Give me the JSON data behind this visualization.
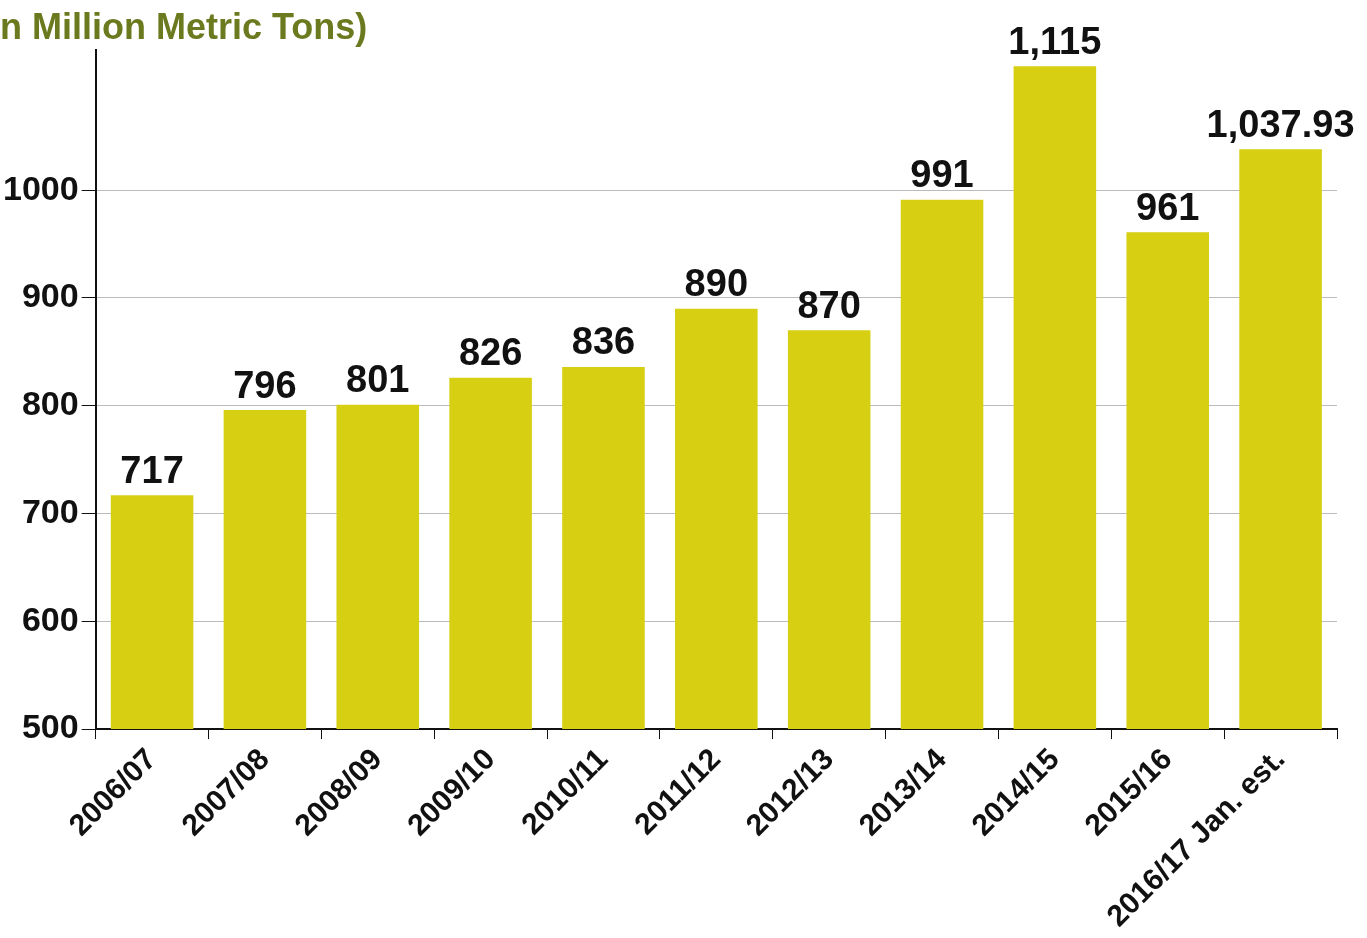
{
  "chart_data": {
    "type": "bar",
    "title": "n Million Metric Tons)",
    "categories": [
      "2006/07",
      "2007/08",
      "2008/09",
      "2009/10",
      "2010/11",
      "2011/12",
      "2012/13",
      "2013/14",
      "2014/15",
      "2015/16",
      "2016/17 Jan. est."
    ],
    "values": [
      717,
      796,
      801,
      826,
      836,
      890,
      870,
      991,
      1115,
      961,
      1037.93
    ],
    "value_labels": [
      "717",
      "796",
      "801",
      "826",
      "836",
      "890",
      "870",
      "991",
      "1,115",
      "961",
      "1,037.93"
    ],
    "color": "#d6cf12",
    "ylim": [
      500,
      1130
    ],
    "yticks": [
      500,
      600,
      700,
      800,
      900,
      1000
    ],
    "grid": "y",
    "legend": false
  }
}
